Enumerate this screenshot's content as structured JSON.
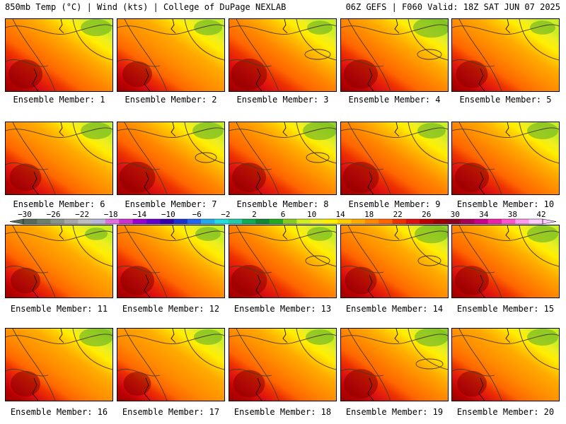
{
  "header": {
    "left": "850mb Temp (°C) | Wind (kts) | College of DuPage NEXLAB",
    "right": "06Z GEFS | F060 Valid: 18Z SAT JUN 07 2025"
  },
  "caption_prefix": "Ensemble Member: ",
  "members": [
    {
      "number": "1",
      "hot": 0.8,
      "cool": 0.55,
      "swirl": 0.0
    },
    {
      "number": "2",
      "hot": 0.7,
      "cool": 0.5,
      "swirl": 0.0
    },
    {
      "number": "3",
      "hot": 0.85,
      "cool": 0.45,
      "swirl": 0.6
    },
    {
      "number": "4",
      "hot": 0.8,
      "cool": 0.65,
      "swirl": 0.5
    },
    {
      "number": "5",
      "hot": 0.75,
      "cool": 0.45,
      "swirl": 0.0
    },
    {
      "number": "6",
      "hot": 0.75,
      "cool": 0.55,
      "swirl": 0.0
    },
    {
      "number": "7",
      "hot": 0.85,
      "cool": 0.55,
      "swirl": 0.3
    },
    {
      "number": "8",
      "hot": 0.8,
      "cool": 0.6,
      "swirl": 0.4
    },
    {
      "number": "9",
      "hot": 0.85,
      "cool": 0.5,
      "swirl": 0.0
    },
    {
      "number": "10",
      "hot": 0.8,
      "cool": 0.55,
      "swirl": 0.0
    },
    {
      "number": "11",
      "hot": 0.7,
      "cool": 0.4,
      "swirl": 0.0
    },
    {
      "number": "12",
      "hot": 0.8,
      "cool": 0.45,
      "swirl": 0.0
    },
    {
      "number": "13",
      "hot": 0.85,
      "cool": 0.45,
      "swirl": 0.5
    },
    {
      "number": "14",
      "hot": 0.75,
      "cool": 0.6,
      "swirl": 0.4
    },
    {
      "number": "15",
      "hot": 0.8,
      "cool": 0.55,
      "swirl": 0.0
    },
    {
      "number": "16",
      "hot": 0.7,
      "cool": 0.6,
      "swirl": 0.0
    },
    {
      "number": "17",
      "hot": 0.65,
      "cool": 0.5,
      "swirl": 0.0
    },
    {
      "number": "18",
      "hot": 0.75,
      "cool": 0.5,
      "swirl": 0.0
    },
    {
      "number": "19",
      "hot": 0.8,
      "cool": 0.6,
      "swirl": 0.7
    },
    {
      "number": "20",
      "hot": 0.7,
      "cool": 0.55,
      "swirl": 0.0
    }
  ],
  "colorbar": {
    "unit": "°C",
    "labels": [
      "-30",
      "-26",
      "-22",
      "-18",
      "-14",
      "-10",
      "-6",
      "-2",
      "2",
      "6",
      "10",
      "14",
      "18",
      "22",
      "26",
      "30",
      "34",
      "38",
      "42"
    ],
    "colors": [
      "#5a6a5a",
      "#6e7f6e",
      "#8a938a",
      "#a8a8a8",
      "#bebebe",
      "#b8b8dc",
      "#e070e0",
      "#cc33cc",
      "#9900cc",
      "#6600cc",
      "#3300aa",
      "#1a33cc",
      "#2266ee",
      "#22aaee",
      "#22dddd",
      "#22ccaa",
      "#11aa55",
      "#118833",
      "#22aa22",
      "#88cc22",
      "#ccee22",
      "#eeee22",
      "#ffee00",
      "#ffcc00",
      "#ffaa00",
      "#ff8800",
      "#ff6600",
      "#ee3300",
      "#dd1111",
      "#bb0000",
      "#990000",
      "#880022",
      "#aa0055",
      "#cc0088",
      "#ee22aa",
      "#ff55cc",
      "#ff99ee",
      "#ffccff"
    ]
  }
}
